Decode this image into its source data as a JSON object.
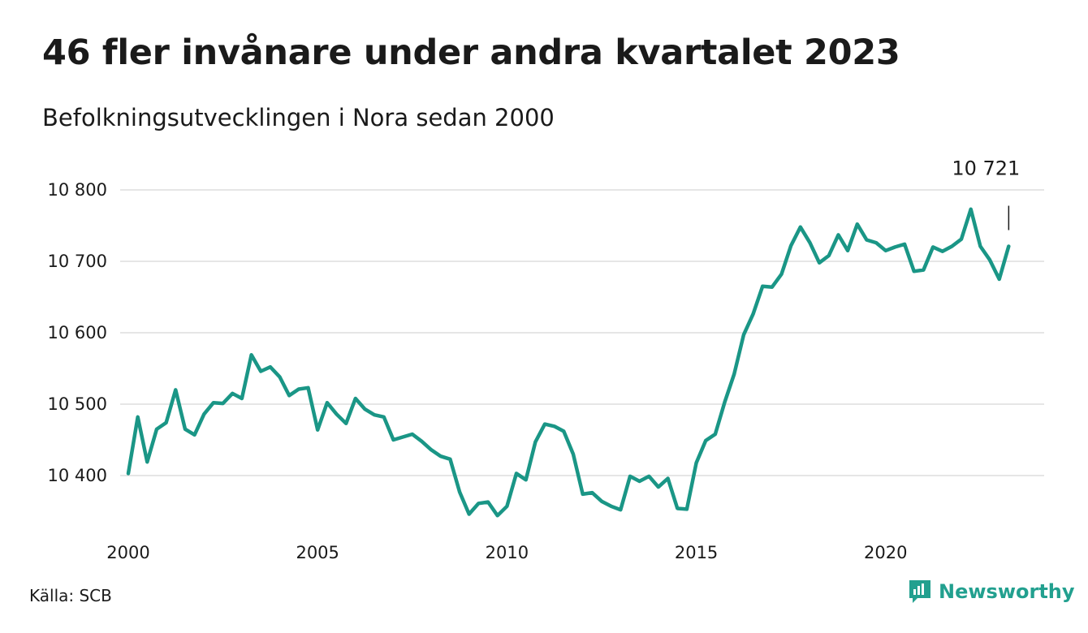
{
  "title": "46 fler invånare under andra kvartalet 2023",
  "subtitle": "Befolkningsutvecklingen i Nora sedan 2000",
  "source": "Källa: SCB",
  "brand": {
    "name": "Newsworthy",
    "icon": "newsworthy-logo-icon",
    "color": "#22a08f"
  },
  "colors": {
    "line": "#1a9686",
    "grid": "#dddddd"
  },
  "chart_data": {
    "type": "line",
    "title": "46 fler invånare under andra kvartalet 2023",
    "subtitle": "Befolkningsutvecklingen i Nora sedan 2000",
    "xlabel": "",
    "ylabel": "",
    "xlim": [
      2000,
      2023.5
    ],
    "ylim": [
      10330,
      10810
    ],
    "grid": true,
    "x_ticks": [
      2000,
      2005,
      2010,
      2015,
      2020
    ],
    "x_tick_labels": [
      "2000",
      "2005",
      "2010",
      "2015",
      "2020"
    ],
    "y_ticks": [
      10400,
      10500,
      10600,
      10700,
      10800
    ],
    "y_tick_labels": [
      "10 400",
      "10 500",
      "10 600",
      "10 700",
      "10 800"
    ],
    "annotation": {
      "text": "10 721",
      "x": 2023.25,
      "value": 10721
    },
    "series": [
      {
        "frequency": "quarterly",
        "start": "2000 Q1",
        "values": [
          10403,
          10482,
          10419,
          10465,
          10474,
          10520,
          10465,
          10457,
          10486,
          10502,
          10501,
          10515,
          10508,
          10569,
          10546,
          10552,
          10538,
          10512,
          10521,
          10523,
          10464,
          10502,
          10486,
          10473,
          10508,
          10493,
          10485,
          10482,
          10450,
          10454,
          10458,
          10448,
          10436,
          10427,
          10423,
          10377,
          10346,
          10361,
          10363,
          10344,
          10357,
          10403,
          10394,
          10447,
          10472,
          10469,
          10462,
          10430,
          10374,
          10376,
          10364,
          10357,
          10352,
          10399,
          10392,
          10399,
          10384,
          10396,
          10354,
          10353,
          10418,
          10449,
          10458,
          10503,
          10542,
          10597,
          10626,
          10665,
          10664,
          10682,
          10722,
          10748,
          10726,
          10698,
          10708,
          10737,
          10715,
          10752,
          10730,
          10726,
          10715,
          10720,
          10724,
          10686,
          10688,
          10720,
          10714,
          10721,
          10731,
          10773,
          10721,
          10702,
          10675,
          10721
        ]
      }
    ]
  }
}
